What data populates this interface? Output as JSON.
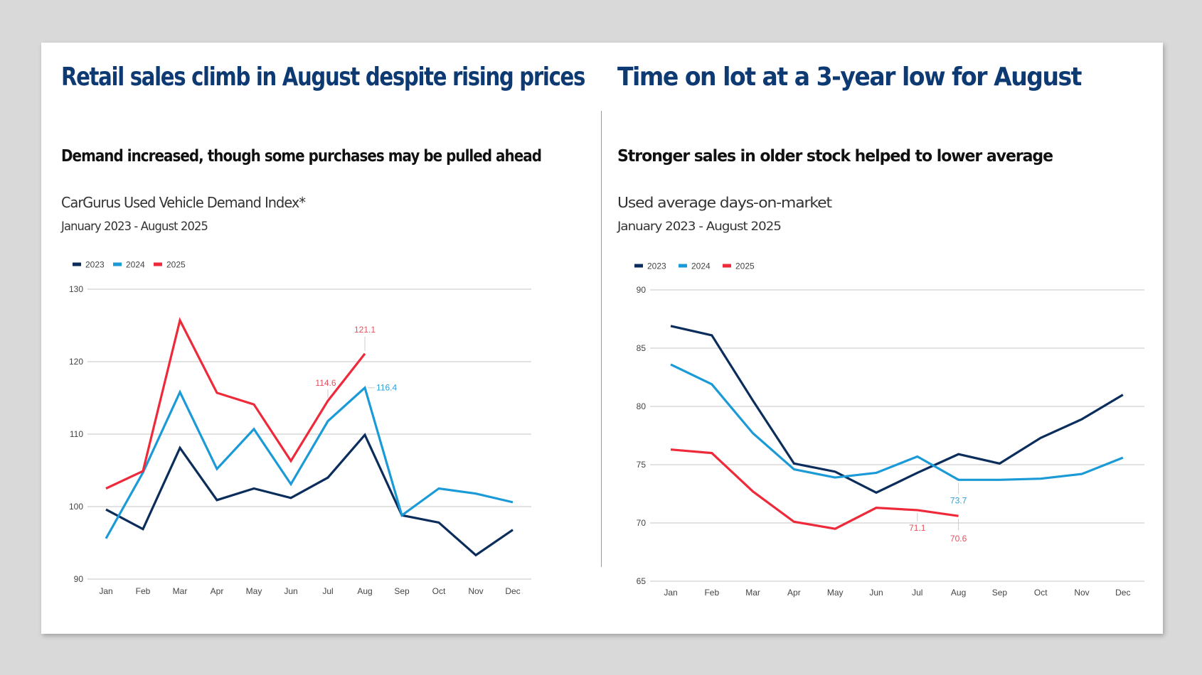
{
  "colors": {
    "series_2023": "#0b2d5c",
    "series_2024": "#1a9ad6",
    "series_2025": "#ee2a3a",
    "title": "#0d3a72",
    "grid": "#d9d9d9"
  },
  "left_panel": {
    "title": "Retail sales climb in August despite rising prices",
    "subtitle": "Demand increased, though some purchases may be pulled ahead",
    "description": "CarGurus Used Vehicle Demand Index*",
    "date_range": "January 2023 - August 2025"
  },
  "right_panel": {
    "title": "Time on lot at a 3-year low for August",
    "subtitle": "Stronger sales in older stock helped to lower average",
    "description": "Used average days-on-market",
    "date_range": "January 2023 - August 2025"
  },
  "chart_data": [
    {
      "type": "line",
      "title": "CarGurus Used Vehicle Demand Index*",
      "xlabel": "",
      "ylabel": "",
      "categories": [
        "Jan",
        "Feb",
        "Mar",
        "Apr",
        "May",
        "Jun",
        "Jul",
        "Aug",
        "Sep",
        "Oct",
        "Nov",
        "Dec"
      ],
      "ylim": [
        90,
        130
      ],
      "yticks": [
        90,
        100,
        110,
        120,
        130
      ],
      "grid": true,
      "legend_position": "top-left",
      "series": [
        {
          "name": "2023",
          "color": "#0b2d5c",
          "values": [
            99.6,
            96.9,
            108.1,
            100.9,
            102.5,
            101.2,
            104.0,
            109.9,
            98.8,
            97.8,
            93.3,
            96.8
          ]
        },
        {
          "name": "2024",
          "color": "#1a9ad6",
          "values": [
            95.6,
            104.7,
            115.8,
            105.2,
            110.7,
            103.1,
            111.8,
            116.4,
            98.8,
            102.5,
            101.8,
            100.6
          ]
        },
        {
          "name": "2025",
          "color": "#ee2a3a",
          "values": [
            102.5,
            104.9,
            125.7,
            115.7,
            114.1,
            106.3,
            114.6,
            121.1
          ]
        }
      ],
      "annotations": [
        {
          "series": "2025",
          "category": "Jul",
          "text": "114.6",
          "placement": "above-left"
        },
        {
          "series": "2025",
          "category": "Aug",
          "text": "121.1",
          "placement": "above"
        },
        {
          "series": "2024",
          "category": "Aug",
          "text": "116.4",
          "placement": "right"
        }
      ]
    },
    {
      "type": "line",
      "title": "Used average days-on-market",
      "xlabel": "",
      "ylabel": "",
      "categories": [
        "Jan",
        "Feb",
        "Mar",
        "Apr",
        "May",
        "Jun",
        "Jul",
        "Aug",
        "Sep",
        "Oct",
        "Nov",
        "Dec"
      ],
      "ylim": [
        65,
        90
      ],
      "yticks": [
        65,
        70,
        75,
        80,
        85,
        90
      ],
      "grid": true,
      "legend_position": "top-left",
      "series": [
        {
          "name": "2023",
          "color": "#0b2d5c",
          "values": [
            86.9,
            86.1,
            80.5,
            75.1,
            74.4,
            72.6,
            74.3,
            75.9,
            75.1,
            77.3,
            78.9,
            81.0
          ]
        },
        {
          "name": "2024",
          "color": "#1a9ad6",
          "values": [
            83.6,
            81.9,
            77.7,
            74.6,
            73.9,
            74.3,
            75.7,
            73.7,
            73.7,
            73.8,
            74.2,
            75.6
          ]
        },
        {
          "name": "2025",
          "color": "#ee2a3a",
          "values": [
            76.3,
            76.0,
            72.7,
            70.1,
            69.5,
            71.3,
            71.1,
            70.6
          ]
        }
      ],
      "annotations": [
        {
          "series": "2025",
          "category": "Jul",
          "text": "71.1",
          "placement": "below"
        },
        {
          "series": "2025",
          "category": "Aug",
          "text": "70.6",
          "placement": "below"
        },
        {
          "series": "2024",
          "category": "Aug",
          "text": "73.7",
          "placement": "below"
        }
      ]
    }
  ]
}
